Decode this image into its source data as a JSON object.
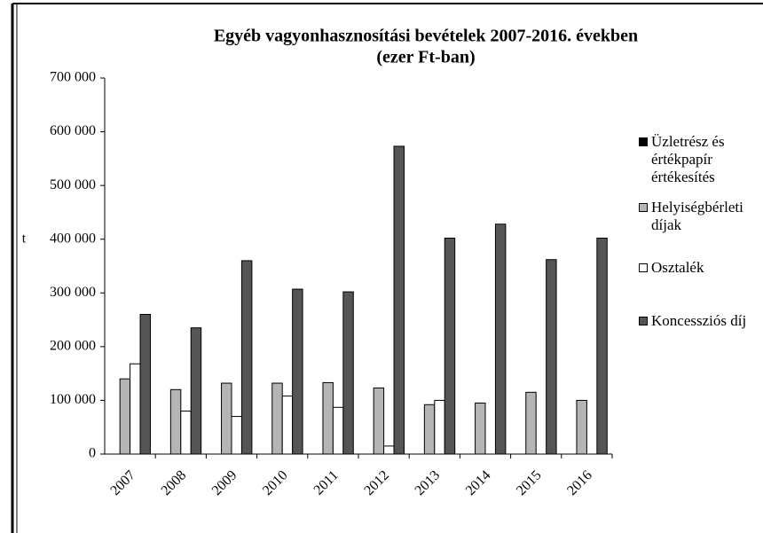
{
  "chart_data": {
    "type": "bar",
    "title": "Egyéb vagyonhasznosítási bevételek 2007-2016. években",
    "subtitle": "(ezer Ft-ban)",
    "y_label": "t",
    "categories": [
      "2007",
      "2008",
      "2009",
      "2010",
      "2011",
      "2012",
      "2013",
      "2014",
      "2015",
      "2016"
    ],
    "series": [
      {
        "name": "Üzletrész és értékpapír értékesítés",
        "color": "#000000",
        "values": [
          0,
          0,
          0,
          0,
          0,
          0,
          0,
          0,
          0,
          0
        ]
      },
      {
        "name": "Helyiségbérleti díjak",
        "color": "#b5b5b5",
        "values": [
          140000,
          120000,
          132000,
          132000,
          133000,
          123000,
          92000,
          95000,
          115000,
          100000
        ]
      },
      {
        "name": "Osztalék",
        "color": "#ffffff",
        "values": [
          168000,
          80000,
          70000,
          108000,
          87000,
          15000,
          100000,
          0,
          0,
          0
        ]
      },
      {
        "name": "Koncessziós díj",
        "color": "#555555",
        "values": [
          260000,
          235000,
          360000,
          307000,
          302000,
          573000,
          402000,
          428000,
          362000,
          402000
        ]
      }
    ],
    "ylim": [
      0,
      700000
    ],
    "yticks": [
      {
        "value": 0,
        "label": "0"
      },
      {
        "value": 100000,
        "label": "100 000"
      },
      {
        "value": 200000,
        "label": "200 000"
      },
      {
        "value": 300000,
        "label": "300 000"
      },
      {
        "value": 400000,
        "label": "400 000"
      },
      {
        "value": 500000,
        "label": "500 000"
      },
      {
        "value": 600000,
        "label": "600 000"
      },
      {
        "value": 700000,
        "label": "700 000"
      }
    ],
    "grid": false,
    "legend": "right"
  }
}
